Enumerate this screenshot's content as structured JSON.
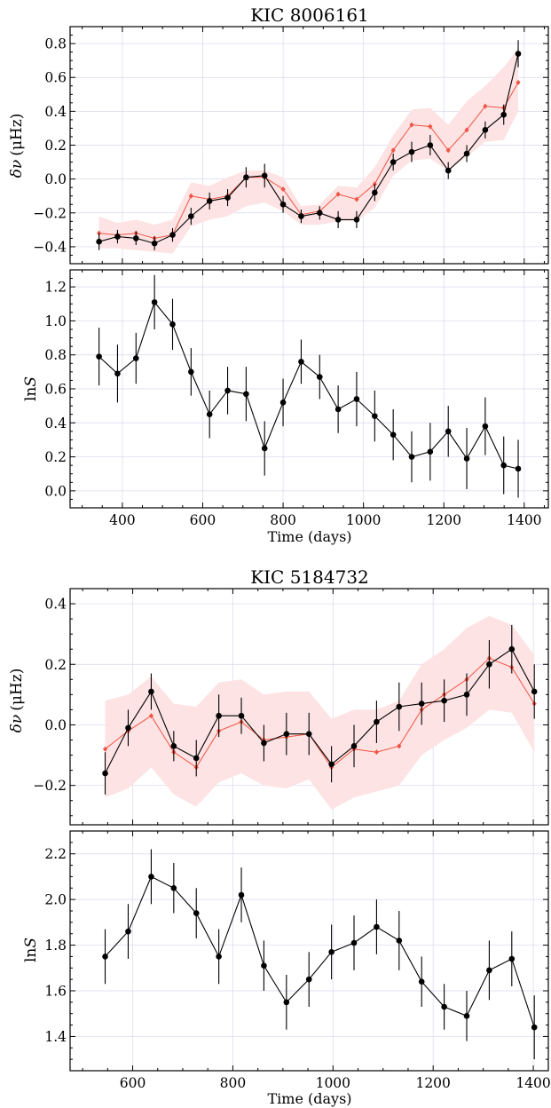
{
  "panels": [
    {
      "title": "KIC 8006161",
      "xlabel": "Time (days)",
      "dnu": {
        "ylabel_sym": "δν",
        "ylabel_unit": "(μHz)",
        "ylim": [
          -0.5,
          0.9
        ],
        "yticks": [
          -0.4,
          -0.2,
          0.0,
          0.2,
          0.4,
          0.6,
          0.8
        ],
        "ytick_labels": [
          "−0.4",
          "−0.2",
          "0.0",
          "0.2",
          "0.4",
          "0.6",
          "0.8"
        ]
      },
      "lns": {
        "ylabel_sym": "ln",
        "ylabel_var": "S",
        "ylim": [
          -0.1,
          1.3
        ],
        "yticks": [
          0.0,
          0.2,
          0.4,
          0.6,
          0.8,
          1.0,
          1.2
        ],
        "ytick_labels": [
          "0.0",
          "0.2",
          "0.4",
          "0.6",
          "0.8",
          "1.0",
          "1.2"
        ]
      },
      "xlim": [
        270,
        1460
      ],
      "xticks": [
        400,
        600,
        800,
        1000,
        1200,
        1400
      ],
      "xtick_labels": [
        "400",
        "600",
        "800",
        "1000",
        "1200",
        "1400"
      ]
    },
    {
      "title": "KIC 5184732",
      "xlabel": "Time (days)",
      "dnu": {
        "ylabel_sym": "δν",
        "ylabel_unit": "(μHz)",
        "ylim": [
          -0.33,
          0.45
        ],
        "yticks": [
          -0.2,
          0.0,
          0.2,
          0.4
        ],
        "ytick_labels": [
          "−0.2",
          "0.0",
          "0.2",
          "0.4"
        ]
      },
      "lns": {
        "ylabel_sym": "ln",
        "ylabel_var": "S",
        "ylim": [
          1.25,
          2.3
        ],
        "yticks": [
          1.4,
          1.6,
          1.8,
          2.0,
          2.2
        ],
        "ytick_labels": [
          "1.4",
          "1.6",
          "1.8",
          "2.0",
          "2.2"
        ]
      },
      "xlim": [
        475,
        1430
      ],
      "xticks": [
        600,
        800,
        1000,
        1200,
        1400
      ],
      "xtick_labels": [
        "600",
        "800",
        "1000",
        "1200",
        "1400"
      ]
    }
  ],
  "colors": {
    "observed": "#000000",
    "model": "#f05545",
    "band": "#fde3e3",
    "grid": "#d8d8ee"
  },
  "chart_data": [
    {
      "type": "line",
      "title": "KIC 8006161",
      "xlabel": "",
      "ylabel": "δν (μHz)",
      "xlim": [
        270,
        1460
      ],
      "ylim": [
        -0.5,
        0.9
      ],
      "grid": true,
      "x": [
        342,
        388,
        434,
        480,
        525,
        571,
        617,
        662,
        708,
        754,
        800,
        845,
        891,
        937,
        983,
        1028,
        1074,
        1120,
        1166,
        1211,
        1257,
        1303,
        1349,
        1385
      ],
      "series": [
        {
          "role": "observed",
          "values": [
            -0.37,
            -0.34,
            -0.35,
            -0.38,
            -0.33,
            -0.22,
            -0.13,
            -0.11,
            0.01,
            0.02,
            -0.15,
            -0.22,
            -0.2,
            -0.24,
            -0.24,
            -0.08,
            0.1,
            0.16,
            0.2,
            0.05,
            0.15,
            0.29,
            0.38,
            0.74
          ],
          "errors": [
            0.05,
            0.04,
            0.04,
            0.04,
            0.04,
            0.05,
            0.05,
            0.05,
            0.06,
            0.07,
            0.05,
            0.04,
            0.04,
            0.05,
            0.05,
            0.05,
            0.05,
            0.06,
            0.06,
            0.05,
            0.05,
            0.05,
            0.06,
            0.08
          ]
        },
        {
          "role": "model",
          "values": [
            -0.32,
            -0.33,
            -0.32,
            -0.35,
            -0.33,
            -0.1,
            -0.12,
            -0.1,
            0.01,
            0.01,
            -0.06,
            -0.21,
            -0.19,
            -0.09,
            -0.12,
            -0.03,
            0.17,
            0.32,
            0.31,
            0.17,
            0.29,
            0.43,
            0.42,
            0.57
          ],
          "band_low": [
            -0.41,
            -0.41,
            -0.42,
            -0.43,
            -0.44,
            -0.28,
            -0.24,
            -0.22,
            -0.16,
            -0.14,
            -0.19,
            -0.27,
            -0.27,
            -0.25,
            -0.25,
            -0.17,
            0.02,
            0.11,
            0.12,
            0.05,
            0.13,
            0.22,
            0.23,
            0.4
          ],
          "band_high": [
            -0.22,
            -0.26,
            -0.24,
            -0.27,
            -0.24,
            -0.02,
            -0.04,
            0.01,
            0.05,
            0.05,
            0.01,
            -0.16,
            -0.15,
            -0.04,
            -0.05,
            0.07,
            0.26,
            0.41,
            0.42,
            0.32,
            0.46,
            0.55,
            0.66,
            0.77
          ]
        }
      ]
    },
    {
      "type": "line",
      "title": "",
      "xlabel": "Time (days)",
      "ylabel": "ln S",
      "xlim": [
        270,
        1460
      ],
      "ylim": [
        -0.1,
        1.3
      ],
      "grid": true,
      "x": [
        342,
        388,
        434,
        480,
        525,
        571,
        617,
        662,
        708,
        754,
        800,
        845,
        891,
        937,
        983,
        1028,
        1074,
        1120,
        1166,
        1211,
        1257,
        1303,
        1349,
        1385
      ],
      "series": [
        {
          "role": "observed",
          "values": [
            0.79,
            0.69,
            0.78,
            1.11,
            0.98,
            0.7,
            0.45,
            0.59,
            0.57,
            0.25,
            0.52,
            0.76,
            0.67,
            0.48,
            0.54,
            0.44,
            0.33,
            0.2,
            0.23,
            0.35,
            0.19,
            0.38,
            0.15,
            0.13
          ],
          "errors": [
            0.17,
            0.17,
            0.15,
            0.16,
            0.15,
            0.14,
            0.14,
            0.14,
            0.16,
            0.16,
            0.14,
            0.13,
            0.13,
            0.14,
            0.16,
            0.15,
            0.15,
            0.15,
            0.17,
            0.15,
            0.18,
            0.17,
            0.17,
            0.17
          ]
        }
      ]
    },
    {
      "type": "line",
      "title": "KIC 5184732",
      "xlabel": "",
      "ylabel": "δν (μHz)",
      "xlim": [
        475,
        1430
      ],
      "ylim": [
        -0.33,
        0.45
      ],
      "grid": true,
      "x": [
        545,
        591,
        637,
        682,
        727,
        772,
        817,
        862,
        907,
        952,
        997,
        1042,
        1087,
        1132,
        1177,
        1222,
        1267,
        1312,
        1357,
        1402
      ],
      "series": [
        {
          "role": "observed",
          "values": [
            -0.16,
            -0.01,
            0.11,
            -0.07,
            -0.11,
            0.03,
            0.03,
            -0.06,
            -0.03,
            -0.03,
            -0.13,
            -0.07,
            0.01,
            0.06,
            0.07,
            0.08,
            0.1,
            0.2,
            0.25,
            0.11
          ],
          "errors": [
            0.07,
            0.06,
            0.06,
            0.05,
            0.06,
            0.07,
            0.06,
            0.06,
            0.07,
            0.07,
            0.06,
            0.07,
            0.07,
            0.08,
            0.07,
            0.07,
            0.07,
            0.08,
            0.08,
            0.09
          ]
        },
        {
          "role": "model",
          "values": [
            -0.08,
            -0.02,
            0.03,
            -0.09,
            -0.14,
            -0.02,
            0.01,
            -0.05,
            -0.04,
            -0.03,
            -0.14,
            -0.08,
            -0.09,
            -0.07,
            0.05,
            0.1,
            0.15,
            0.22,
            0.19,
            0.07
          ],
          "band_low": [
            -0.24,
            -0.21,
            -0.14,
            -0.23,
            -0.27,
            -0.19,
            -0.16,
            -0.2,
            -0.21,
            -0.18,
            -0.28,
            -0.24,
            -0.22,
            -0.2,
            -0.1,
            -0.05,
            -0.01,
            0.05,
            0.04,
            -0.09
          ],
          "band_high": [
            0.08,
            0.1,
            0.16,
            0.07,
            0.06,
            0.14,
            0.15,
            0.1,
            0.11,
            0.11,
            0.02,
            0.05,
            0.05,
            0.08,
            0.2,
            0.25,
            0.32,
            0.36,
            0.33,
            0.23
          ]
        }
      ]
    },
    {
      "type": "line",
      "title": "",
      "xlabel": "Time (days)",
      "ylabel": "ln S",
      "xlim": [
        475,
        1430
      ],
      "ylim": [
        1.25,
        2.3
      ],
      "grid": true,
      "x": [
        545,
        591,
        637,
        682,
        727,
        772,
        817,
        862,
        907,
        952,
        997,
        1042,
        1087,
        1132,
        1177,
        1222,
        1267,
        1312,
        1357,
        1402
      ],
      "series": [
        {
          "role": "observed",
          "values": [
            1.75,
            1.86,
            2.1,
            2.05,
            1.94,
            1.75,
            2.02,
            1.71,
            1.55,
            1.65,
            1.77,
            1.81,
            1.88,
            1.82,
            1.64,
            1.53,
            1.49,
            1.69,
            1.74,
            1.44
          ],
          "errors": [
            0.12,
            0.12,
            0.12,
            0.11,
            0.11,
            0.12,
            0.12,
            0.11,
            0.12,
            0.12,
            0.12,
            0.12,
            0.12,
            0.13,
            0.11,
            0.1,
            0.11,
            0.13,
            0.12,
            0.14
          ]
        }
      ]
    }
  ]
}
